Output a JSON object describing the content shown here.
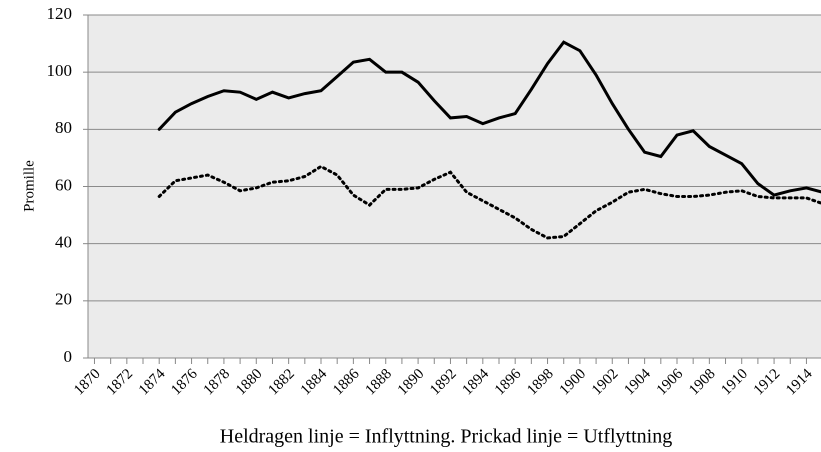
{
  "chart_data": {
    "type": "line",
    "x_label": "Heldragen linje = Inflyttning. Prickad linje = Utflyttning",
    "y_label": "Promille",
    "x": [
      1874,
      1875,
      1876,
      1877,
      1878,
      1879,
      1880,
      1881,
      1882,
      1883,
      1884,
      1885,
      1886,
      1887,
      1888,
      1889,
      1890,
      1891,
      1892,
      1893,
      1894,
      1895,
      1896,
      1897,
      1898,
      1899,
      1900,
      1901,
      1902,
      1903,
      1904,
      1905,
      1906,
      1907,
      1908,
      1909,
      1910,
      1911,
      1912,
      1913,
      1914,
      1915
    ],
    "series": [
      {
        "color": "#000000",
        "style": "solid",
        "values": [
          80,
          86,
          89,
          91.5,
          93.5,
          93,
          90.5,
          93,
          91,
          92.5,
          93.5,
          98.5,
          103.5,
          104.5,
          100,
          100,
          96.5,
          90,
          84,
          84.5,
          82,
          84,
          85.5,
          94,
          103,
          110.5,
          107.5,
          99,
          89,
          80,
          72,
          70.5,
          78,
          79.5,
          74,
          71,
          68,
          61,
          57,
          58.5,
          59.5,
          58
        ]
      },
      {
        "color": "#000000",
        "style": "dotted",
        "values": [
          56.5,
          62,
          63,
          64,
          61.5,
          58.5,
          59.5,
          61.5,
          62,
          63.5,
          67,
          64,
          57,
          53.5,
          59,
          59,
          59.5,
          62.5,
          65,
          58,
          55,
          52,
          49,
          45,
          42,
          42.5,
          47,
          51.5,
          54.5,
          58,
          59,
          57.5,
          56.5,
          56.5,
          57,
          58,
          58.5,
          56.5,
          56,
          56,
          56,
          54
        ]
      }
    ],
    "xlim": [
      1869.6,
      1914.9
    ],
    "xticks": [
      1870,
      1872,
      1874,
      1876,
      1878,
      1880,
      1882,
      1884,
      1886,
      1888,
      1890,
      1892,
      1894,
      1896,
      1898,
      1900,
      1902,
      1904,
      1906,
      1908,
      1910,
      1912,
      1914
    ],
    "ylim": [
      0,
      120
    ],
    "yticks": [
      0,
      20,
      40,
      60,
      80,
      100,
      120
    ],
    "grid": true
  }
}
